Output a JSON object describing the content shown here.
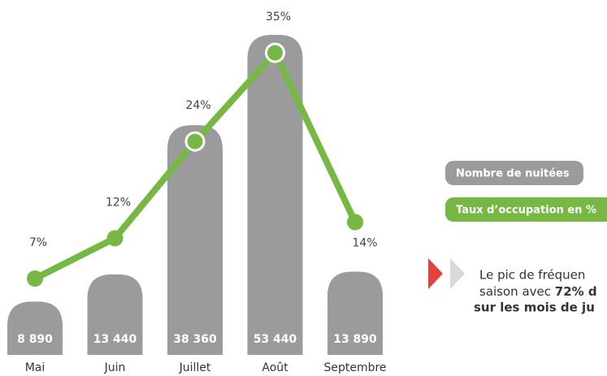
{
  "chart_data": {
    "type": "bar",
    "categories": [
      "Mai",
      "Juin",
      "Juillet",
      "Août",
      "Septembre"
    ],
    "series": [
      {
        "name": "Nombre de nuitées",
        "color": "#9b9b9d",
        "values": [
          8890,
          13440,
          38360,
          53440,
          13890
        ],
        "value_labels": [
          "8 890",
          "13 440",
          "38 360",
          "53 440",
          "13 890"
        ]
      },
      {
        "name": "Taux d’occupation en %",
        "color": "#76b843",
        "axis": "y2",
        "values": [
          7,
          12,
          24,
          35,
          14
        ],
        "value_labels": [
          "7%",
          "12%",
          "24%",
          "35%",
          "14%"
        ]
      }
    ],
    "ylim": [
      0,
      56000
    ],
    "y2lim": [
      0,
      35
    ],
    "annotation": {
      "line1": "Le pic de fréquen",
      "line2": "saison avec ",
      "line2_bold": "72% d",
      "line3": "sur les mois de ju"
    }
  }
}
